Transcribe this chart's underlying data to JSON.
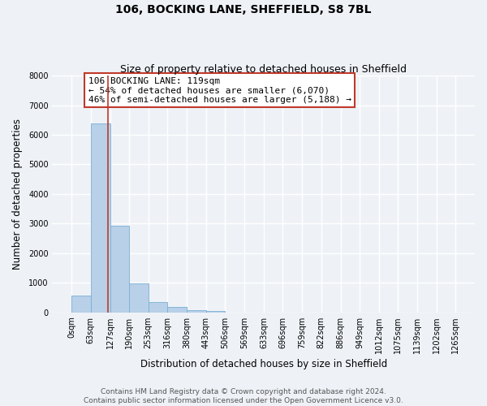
{
  "title": "106, BOCKING LANE, SHEFFIELD, S8 7BL",
  "subtitle": "Size of property relative to detached houses in Sheffield",
  "xlabel": "Distribution of detached houses by size in Sheffield",
  "ylabel": "Number of detached properties",
  "bin_edges": [
    0,
    63,
    127,
    190,
    253,
    316,
    380,
    443,
    506,
    569,
    633,
    696,
    759,
    822,
    886,
    949,
    1012,
    1075,
    1139,
    1202,
    1265
  ],
  "bin_labels": [
    "0sqm",
    "63sqm",
    "127sqm",
    "190sqm",
    "253sqm",
    "316sqm",
    "380sqm",
    "443sqm",
    "506sqm",
    "569sqm",
    "633sqm",
    "696sqm",
    "759sqm",
    "822sqm",
    "886sqm",
    "949sqm",
    "1012sqm",
    "1075sqm",
    "1139sqm",
    "1202sqm",
    "1265sqm"
  ],
  "bar_heights": [
    560,
    6380,
    2920,
    970,
    360,
    170,
    80,
    50,
    0,
    0,
    0,
    0,
    0,
    0,
    0,
    0,
    0,
    0,
    0,
    0
  ],
  "bar_color": "#b8d0e8",
  "bar_edgecolor": "#7aafd4",
  "bar_linewidth": 0.6,
  "vline_x": 119,
  "vline_color": "#c0392b",
  "vline_linewidth": 1.2,
  "annotation_box_text": "106 BOCKING LANE: 119sqm\n← 54% of detached houses are smaller (6,070)\n46% of semi-detached houses are larger (5,188) →",
  "annotation_fontsize": 8,
  "box_edgecolor": "#c0392b",
  "box_facecolor": "white",
  "ylim": [
    0,
    8000
  ],
  "yticks": [
    0,
    1000,
    2000,
    3000,
    4000,
    5000,
    6000,
    7000,
    8000
  ],
  "footer_text": "Contains HM Land Registry data © Crown copyright and database right 2024.\nContains public sector information licensed under the Open Government Licence v3.0.",
  "bg_color": "#eef2f7",
  "grid_color": "white",
  "title_fontsize": 10,
  "subtitle_fontsize": 9,
  "axis_label_fontsize": 8.5,
  "tick_fontsize": 7,
  "footer_fontsize": 6.5
}
